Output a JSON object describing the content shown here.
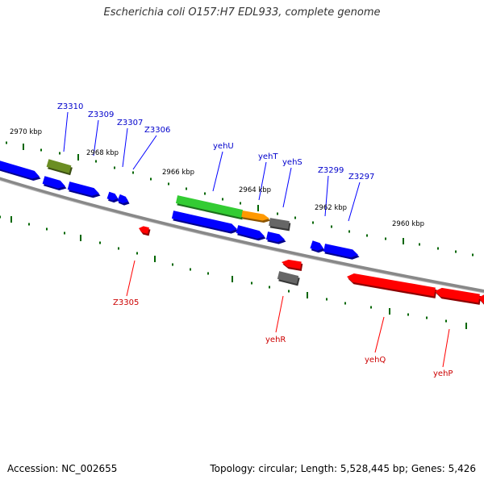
{
  "title": "Escherichia coli O157:H7 EDL933, complete genome",
  "accession_text": "Accession: NC_002655",
  "summary_text": "Topology: circular; Length: 5,528,445 bp; Genes: 5,426",
  "colors": {
    "forward": "#0000ff",
    "reverse": "#ff0000",
    "gene_green": "#33cc33",
    "gene_orange": "#ff9900",
    "gene_olive": "#6b8e23",
    "gene_gray": "#666666",
    "backbone": "#888888",
    "tick": "#006600",
    "forward_label": "#0000cc",
    "reverse_label": "#cc0000"
  },
  "position_labels": [
    "2970 kbp",
    "2968 kbp",
    "2966 kbp",
    "2964 kbp",
    "2962 kbp",
    "2960 kbp"
  ],
  "forward_gene_labels": [
    "Z3310",
    "Z3309",
    "Z3307",
    "Z3306",
    "yehU",
    "yehT",
    "yehS",
    "Z3299",
    "Z3297"
  ],
  "reverse_gene_labels": [
    "Z3305",
    "yehR",
    "yehQ",
    "yehP"
  ]
}
